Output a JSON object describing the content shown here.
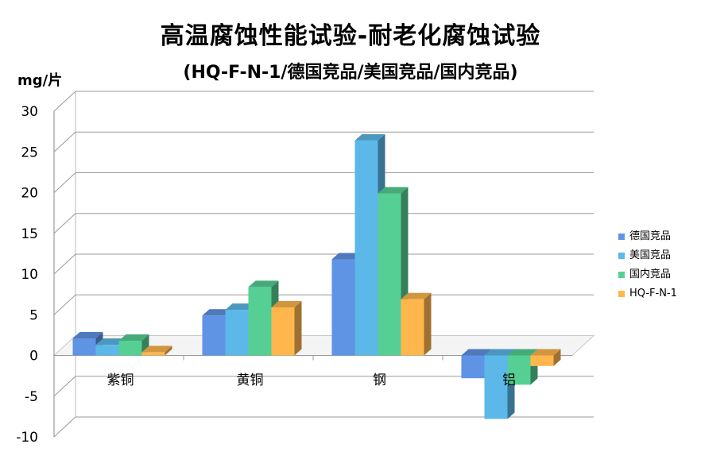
{
  "chart_data": {
    "type": "bar",
    "title": "高温腐蚀性能试验-耐老化腐蚀试验",
    "subtitle": "(HQ-F-N-1/德国竞品/美国竞品/国内竞品)",
    "ylabel": "mg/片",
    "xlabel": "",
    "categories": [
      "紫铜",
      "黄铜",
      "钢",
      "铝"
    ],
    "series": [
      {
        "name": "德国竞品",
        "color": "#5F93E4",
        "values": [
          2.1,
          4.9,
          11.8,
          -2.8
        ]
      },
      {
        "name": "美国竞品",
        "color": "#5BB8E8",
        "values": [
          1.3,
          5.6,
          26.4,
          -7.8
        ]
      },
      {
        "name": "国内竞品",
        "color": "#55CF93",
        "values": [
          1.8,
          8.4,
          19.9,
          -3.6
        ]
      },
      {
        "name": "HQ-F-N-1",
        "color": "#FFB74D",
        "values": [
          0.4,
          5.9,
          6.9,
          -1.3
        ]
      }
    ],
    "legend_order": [
      0,
      1,
      2,
      3
    ],
    "ylim": [
      -10,
      30
    ],
    "yticks": [
      "30",
      "25",
      "20",
      "15",
      "10",
      "5",
      "0",
      "-5",
      "-10"
    ],
    "grid": true,
    "legend_position": "right"
  }
}
